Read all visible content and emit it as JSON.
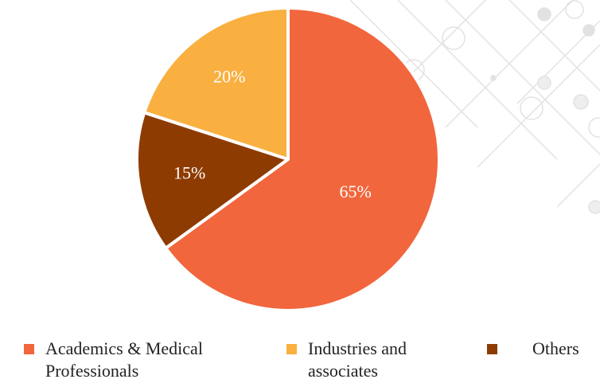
{
  "chart_data": {
    "type": "pie",
    "categories": [
      "Academics & Medical Professionals",
      "Others",
      "Industries and associates"
    ],
    "values": [
      65,
      15,
      20
    ],
    "value_labels": [
      "65%",
      "15%",
      "20%"
    ],
    "colors": [
      "#f2663d",
      "#8e3b02",
      "#f9b040"
    ],
    "legend": "bottom"
  }
}
